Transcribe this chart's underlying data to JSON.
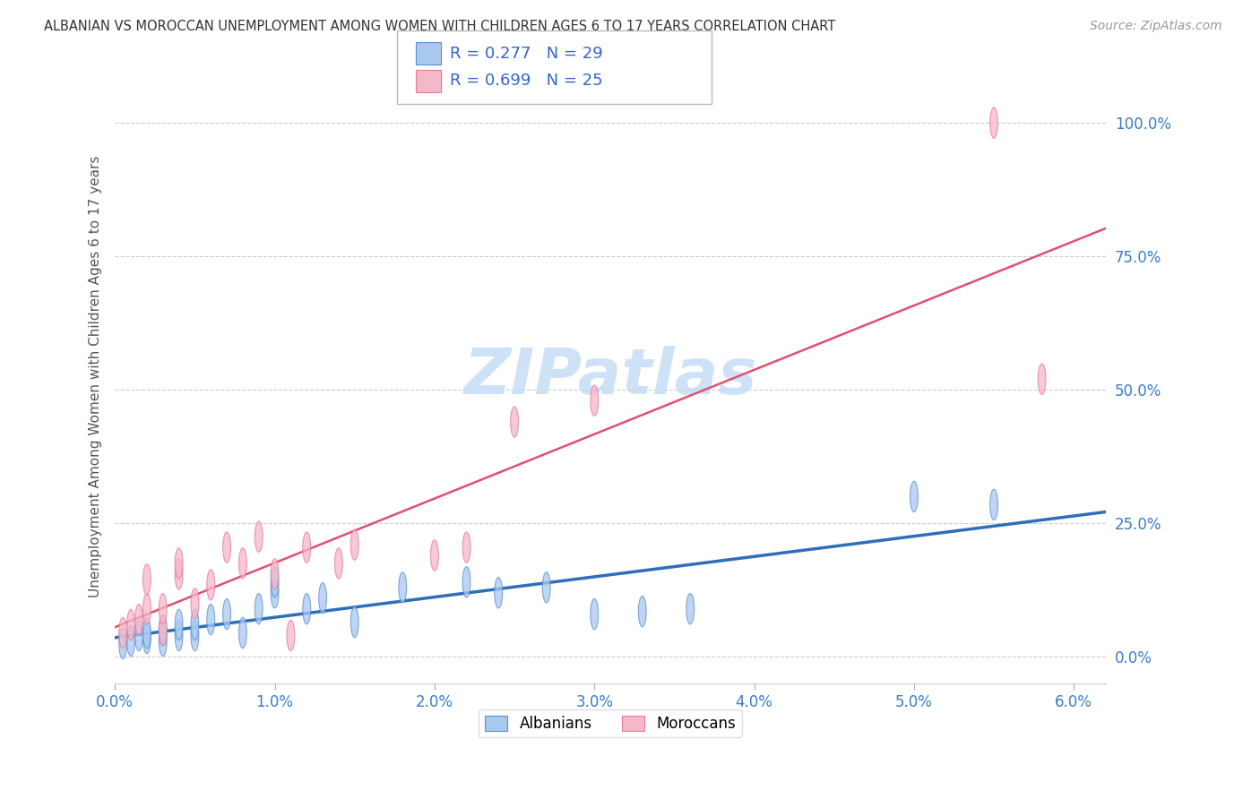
{
  "title": "ALBANIAN VS MOROCCAN UNEMPLOYMENT AMONG WOMEN WITH CHILDREN AGES 6 TO 17 YEARS CORRELATION CHART",
  "source": "Source: ZipAtlas.com",
  "ylabel": "Unemployment Among Women with Children Ages 6 to 17 years",
  "xlim": [
    0.0,
    0.062
  ],
  "ylim": [
    -0.05,
    1.1
  ],
  "xticks": [
    0.0,
    0.01,
    0.02,
    0.03,
    0.04,
    0.05,
    0.06
  ],
  "xticklabels": [
    "0.0%",
    "1.0%",
    "2.0%",
    "3.0%",
    "4.0%",
    "5.0%",
    "6.0%"
  ],
  "yticks": [
    0.0,
    0.25,
    0.5,
    0.75,
    1.0
  ],
  "yticklabels": [
    "0.0%",
    "25.0%",
    "50.0%",
    "75.0%",
    "100.0%"
  ],
  "albanians_x": [
    0.0005,
    0.001,
    0.0015,
    0.002,
    0.002,
    0.003,
    0.003,
    0.004,
    0.004,
    0.005,
    0.005,
    0.006,
    0.007,
    0.008,
    0.009,
    0.01,
    0.01,
    0.012,
    0.013,
    0.015,
    0.018,
    0.022,
    0.024,
    0.027,
    0.03,
    0.033,
    0.036,
    0.05,
    0.055
  ],
  "albanians_y": [
    0.025,
    0.03,
    0.04,
    0.035,
    0.045,
    0.03,
    0.05,
    0.04,
    0.06,
    0.04,
    0.06,
    0.07,
    0.08,
    0.045,
    0.09,
    0.12,
    0.14,
    0.09,
    0.11,
    0.065,
    0.13,
    0.14,
    0.12,
    0.13,
    0.08,
    0.085,
    0.09,
    0.3,
    0.285
  ],
  "moroccans_x": [
    0.0005,
    0.001,
    0.0015,
    0.002,
    0.002,
    0.003,
    0.003,
    0.004,
    0.004,
    0.005,
    0.006,
    0.007,
    0.008,
    0.009,
    0.01,
    0.011,
    0.012,
    0.014,
    0.015,
    0.02,
    0.022,
    0.025,
    0.03,
    0.055,
    0.058
  ],
  "moroccans_y": [
    0.045,
    0.06,
    0.07,
    0.09,
    0.145,
    0.05,
    0.09,
    0.155,
    0.175,
    0.1,
    0.135,
    0.205,
    0.175,
    0.225,
    0.155,
    0.04,
    0.205,
    0.175,
    0.21,
    0.19,
    0.205,
    0.44,
    0.48,
    1.0,
    0.52
  ],
  "albanian_R": 0.277,
  "albanian_N": 29,
  "moroccan_R": 0.699,
  "moroccan_N": 25,
  "albanian_color": "#a8c8f0",
  "moroccan_color": "#f5b8c8",
  "albanian_line_color": "#2e6fba",
  "moroccan_line_color": "#e05070",
  "albanian_edge_color": "#5a90d0",
  "moroccan_edge_color": "#e878a0",
  "watermark_text": "ZIPatlas",
  "watermark_color": "#c8dff5",
  "background_color": "#ffffff",
  "grid_color": "#cccccc"
}
